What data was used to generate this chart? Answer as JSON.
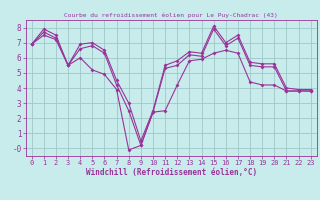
{
  "title": "Courbe du refroidissement éolien pour Le Puy-Chadrac (43)",
  "xlabel": "Windchill (Refroidissement éolien,°C)",
  "background_color": "#c8ecec",
  "grid_color": "#a0c8c8",
  "line_color": "#993399",
  "axis_color": "#993399",
  "x": [
    0,
    1,
    2,
    3,
    4,
    5,
    6,
    7,
    8,
    9,
    10,
    11,
    12,
    13,
    14,
    15,
    16,
    17,
    18,
    19,
    20,
    21,
    22,
    23
  ],
  "y_max": [
    6.9,
    7.9,
    7.5,
    5.5,
    6.9,
    7.0,
    6.5,
    4.5,
    3.0,
    0.5,
    2.5,
    5.5,
    5.8,
    6.4,
    6.3,
    8.1,
    7.0,
    7.5,
    5.7,
    5.6,
    5.6,
    4.0,
    3.9,
    3.9
  ],
  "y_mean": [
    6.9,
    7.7,
    7.3,
    5.5,
    6.6,
    6.8,
    6.3,
    4.2,
    2.5,
    0.2,
    2.4,
    5.3,
    5.5,
    6.2,
    6.1,
    7.9,
    6.8,
    7.3,
    5.5,
    5.4,
    5.4,
    3.8,
    3.8,
    3.8
  ],
  "y_min": [
    6.9,
    7.5,
    7.2,
    5.5,
    6.0,
    5.2,
    4.9,
    3.9,
    -0.1,
    0.2,
    2.4,
    2.5,
    4.2,
    5.8,
    5.9,
    6.3,
    6.5,
    6.3,
    4.4,
    4.2,
    4.2,
    3.8,
    3.8,
    3.8
  ],
  "ylim": [
    -0.5,
    8.5
  ],
  "xlim": [
    -0.5,
    23.5
  ],
  "yticks": [
    0,
    1,
    2,
    3,
    4,
    5,
    6,
    7,
    8
  ],
  "xticks": [
    0,
    1,
    2,
    3,
    4,
    5,
    6,
    7,
    8,
    9,
    10,
    11,
    12,
    13,
    14,
    15,
    16,
    17,
    18,
    19,
    20,
    21,
    22,
    23
  ],
  "ylabel_0": "-0"
}
